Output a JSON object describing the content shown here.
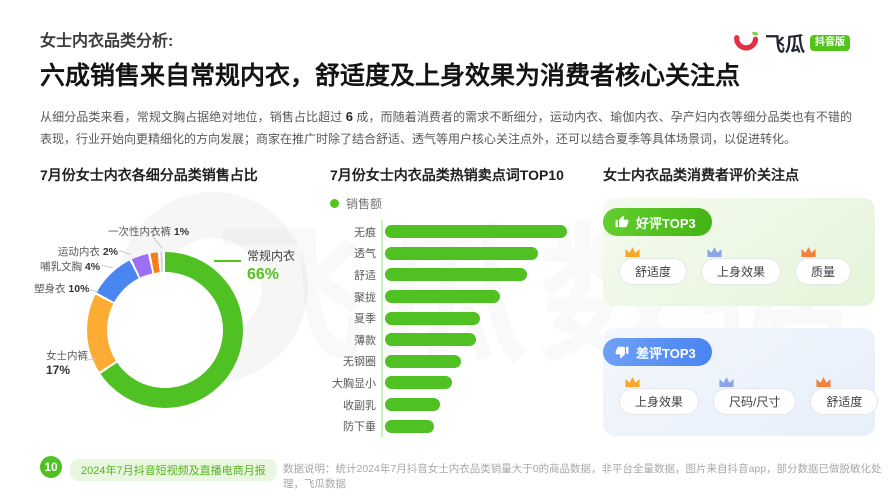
{
  "page": {
    "eyebrow": "女士内衣品类分析:",
    "headline": "六成销售来自常规内衣，舒适度及上身效果为消费者核心关注点",
    "intro_part1": "从细分品类来看，常规文胸占据绝对地位，销售占比超过 ",
    "intro_em": "6",
    "intro_part2": " 成，而随着消费者的需求不断细分，运动内衣、瑜伽内衣、孕产妇内衣等细分品类也有不错的表现，行业开始向更精细化的方向发展；商家在推广时除了结合舒适、透气等用户核心关注点外，还可以结合夏季等具体场景词，以促进转化。"
  },
  "brand": {
    "name": "飞瓜",
    "badge": "抖音版",
    "badge_color": "#52C41A",
    "logo_red": "#E62E44",
    "leaf_green": "#7FD14E"
  },
  "watermark_text": "飞瓜数据",
  "colors": {
    "accent_green": "#52C41A",
    "bar_green": "#4FC122",
    "badge_blue": "#4A84F0"
  },
  "chart_data": [
    {
      "type": "pie",
      "subtype": "donut",
      "title": "7月份女士内衣各细分品类销售占比",
      "categories": [
        "常规内衣",
        "女士内裤",
        "塑身衣",
        "哺乳文胸",
        "运动内衣",
        "一次性内衣裤"
      ],
      "values": [
        66,
        17,
        10,
        4,
        2,
        1
      ],
      "percent_labels": [
        "66%",
        "17%",
        "10%",
        "4%",
        "2%",
        "1%"
      ],
      "unit": "%",
      "colors": [
        "#4FC122",
        "#FBAD33",
        "#4A86F0",
        "#9D6FF3",
        "#F77C1F",
        "#D8D8D8"
      ],
      "start_angle": "top, clockwise",
      "legend_position": "callout-labels",
      "highlight": "常规内衣 66%"
    },
    {
      "type": "bar",
      "orientation": "horizontal",
      "title": "7月份女士内衣品类热销卖点词TOP10",
      "series": [
        {
          "name": "销售额",
          "values": [
            100,
            84,
            78,
            63,
            52,
            50,
            42,
            37,
            30,
            27
          ]
        }
      ],
      "categories": [
        "无痕",
        "透气",
        "舒适",
        "聚拢",
        "夏季",
        "薄款",
        "无钢圈",
        "大胸显小",
        "收副乳",
        "防下垂"
      ],
      "value_axis": "hidden (relative index, 无痕 = 100)",
      "color": "#4FC122",
      "grid": "off",
      "legend_position": "top-left"
    }
  ],
  "reviews": {
    "title": "女士内衣品类消费者评价关注点",
    "crown_colors": [
      "#F6A82C",
      "#8CA5E8",
      "#F0833B"
    ],
    "positive": {
      "badge": "好评TOP3",
      "items": [
        "舒适度",
        "上身效果",
        "质量"
      ]
    },
    "negative": {
      "badge": "差评TOP3",
      "items": [
        "上身效果",
        "尺码/尺寸",
        "舒适度"
      ]
    }
  },
  "footer": {
    "page_number": "10",
    "report_title": "2024年7月抖音短视频及直播电商月报",
    "data_note": "数据说明：统计2024年7月抖音女士内衣品类销量大于0的商品数据，非平台全量数据，图片来自抖音app，部分数据已做脱敏化处理，飞瓜数据"
  }
}
